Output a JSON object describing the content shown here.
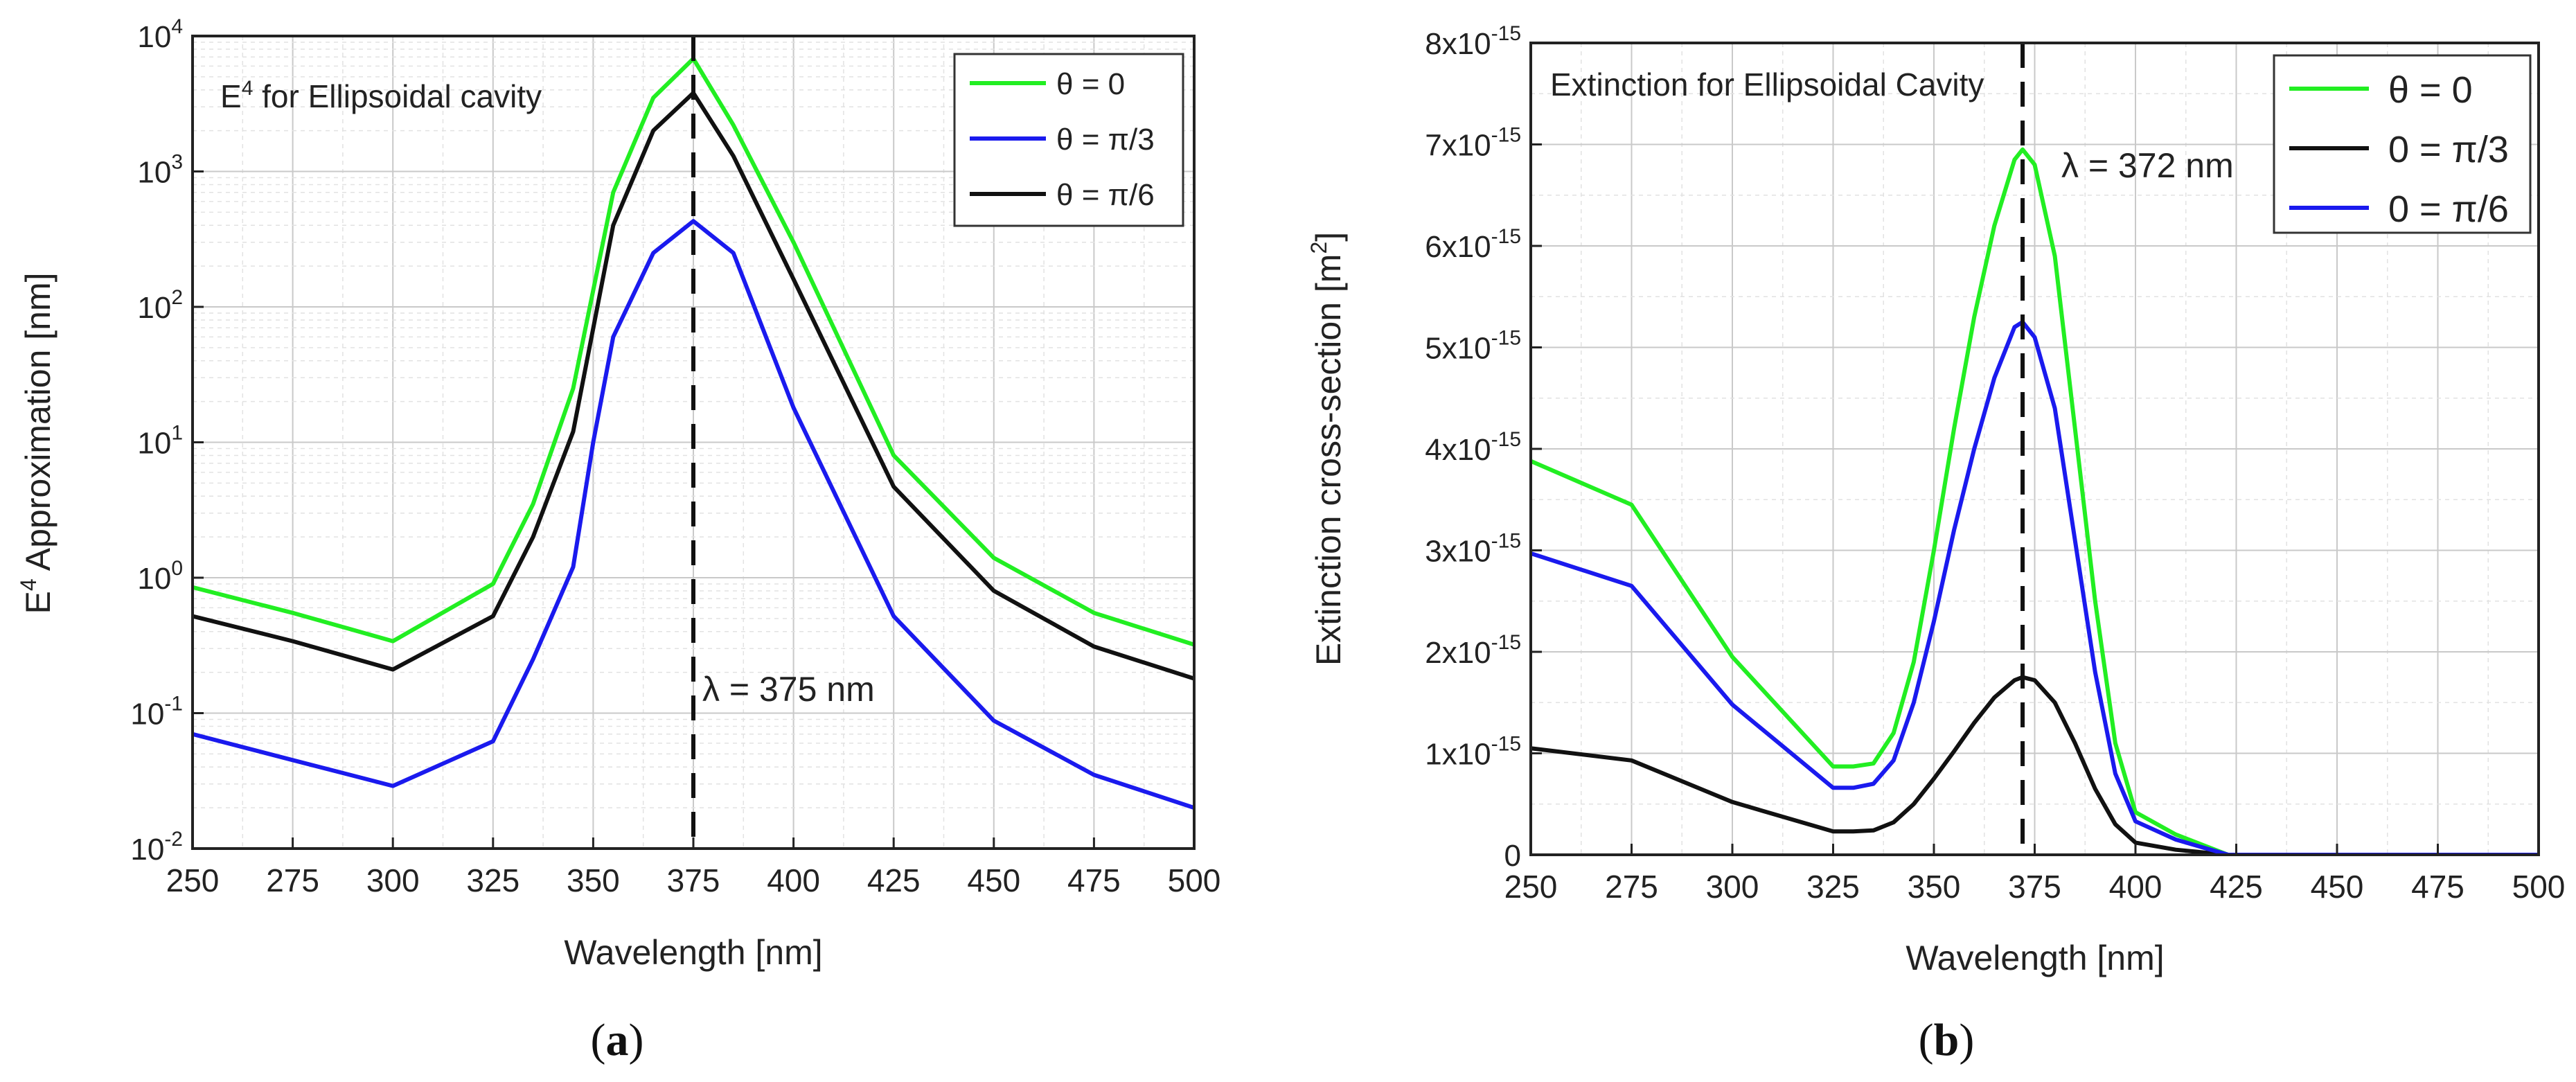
{
  "chart_data": [
    {
      "type": "line",
      "panel": "(a)",
      "panel_label": "a",
      "title": "E4 for Ellipsoidal cavity",
      "title_prefix": "E",
      "title_sup": "4",
      "title_suffix": " for Ellipsoidal cavity",
      "xlabel": "Wavelength [nm]",
      "ylabel_prefix": "E",
      "ylabel_sup": "4",
      "ylabel_suffix": " Approximation [nm]",
      "yscale": "log",
      "xlim": [
        250,
        500
      ],
      "ylim": [
        0.01,
        10000
      ],
      "x_ticks": [
        250,
        275,
        300,
        325,
        350,
        375,
        400,
        425,
        450,
        475,
        500
      ],
      "y_ticks": [
        {
          "value": 0.01,
          "base": "10",
          "exp": "-2"
        },
        {
          "value": 0.1,
          "base": "10",
          "exp": "-1"
        },
        {
          "value": 1,
          "base": "10",
          "exp": "0"
        },
        {
          "value": 10,
          "base": "10",
          "exp": "1"
        },
        {
          "value": 100,
          "base": "10",
          "exp": "2"
        },
        {
          "value": 1000,
          "base": "10",
          "exp": "3"
        },
        {
          "value": 10000,
          "base": "10",
          "exp": "4"
        }
      ],
      "grid": true,
      "legend_position": "top-right",
      "annotation": {
        "text": "λ = 375 nm",
        "x": 375
      },
      "series": [
        {
          "name": "θ = 0",
          "color": "#22ee22",
          "x": [
            250,
            275,
            300,
            325,
            335,
            345,
            355,
            365,
            375,
            385,
            400,
            425,
            450,
            475,
            500
          ],
          "y": [
            0.85,
            0.55,
            0.34,
            0.9,
            3.5,
            25,
            700,
            3500,
            6800,
            2200,
            300,
            8,
            1.4,
            0.55,
            0.32
          ]
        },
        {
          "name": "θ = π/3",
          "color": "#1a1aee",
          "x": [
            250,
            275,
            300,
            325,
            335,
            345,
            350,
            355,
            365,
            375,
            385,
            400,
            425,
            450,
            475,
            500
          ],
          "y": [
            0.07,
            0.045,
            0.029,
            0.062,
            0.25,
            1.2,
            10,
            60,
            250,
            430,
            250,
            18,
            0.52,
            0.088,
            0.035,
            0.02
          ]
        },
        {
          "name": "θ = π/6",
          "color": "#111111",
          "x": [
            250,
            275,
            300,
            325,
            335,
            345,
            355,
            365,
            375,
            385,
            400,
            425,
            450,
            475,
            500
          ],
          "y": [
            0.52,
            0.34,
            0.21,
            0.52,
            2.0,
            12,
            400,
            2000,
            3800,
            1300,
            160,
            4.7,
            0.8,
            0.31,
            0.18
          ]
        }
      ]
    },
    {
      "type": "line",
      "panel": "(b)",
      "panel_label": "b",
      "title": "Extinction for Ellipsoidal Cavity",
      "xlabel": "Wavelength [nm]",
      "ylabel_prefix": "Extinction cross-section [m",
      "ylabel_sup": "2",
      "ylabel_suffix": "]",
      "yscale": "linear",
      "xlim": [
        250,
        500
      ],
      "ylim": [
        0,
        8e-15
      ],
      "x_ticks": [
        250,
        275,
        300,
        325,
        350,
        375,
        400,
        425,
        450,
        475,
        500
      ],
      "y_ticks": [
        {
          "value": 0,
          "base": "0",
          "exp": ""
        },
        {
          "value": 1e-15,
          "base": "1x10",
          "exp": "-15"
        },
        {
          "value": 2e-15,
          "base": "2x10",
          "exp": "-15"
        },
        {
          "value": 3e-15,
          "base": "3x10",
          "exp": "-15"
        },
        {
          "value": 4e-15,
          "base": "4x10",
          "exp": "-15"
        },
        {
          "value": 5e-15,
          "base": "5x10",
          "exp": "-15"
        },
        {
          "value": 6e-15,
          "base": "6x10",
          "exp": "-15"
        },
        {
          "value": 7e-15,
          "base": "7x10",
          "exp": "-15"
        },
        {
          "value": 8e-15,
          "base": "8x10",
          "exp": "-15"
        }
      ],
      "grid": true,
      "legend_position": "top-right",
      "annotation": {
        "text": "λ = 372 nm",
        "x": 372
      },
      "series": [
        {
          "name": "θ = 0",
          "color": "#22ee22",
          "x": [
            250,
            275,
            300,
            325,
            330,
            335,
            340,
            345,
            350,
            355,
            360,
            365,
            370,
            372,
            375,
            380,
            385,
            390,
            395,
            400,
            410,
            423,
            500
          ],
          "y": [
            3.88e-15,
            3.45e-15,
            1.95e-15,
            8.7e-16,
            8.7e-16,
            9e-16,
            1.2e-15,
            1.9e-15,
            3e-15,
            4.2e-15,
            5.3e-15,
            6.2e-15,
            6.85e-15,
            6.95e-15,
            6.8e-15,
            5.9e-15,
            4.2e-15,
            2.5e-15,
            1.1e-15,
            4.2e-16,
            2e-16,
            0,
            0
          ]
        },
        {
          "name": "0 = π/3",
          "color": "#111111",
          "x": [
            250,
            275,
            300,
            325,
            330,
            335,
            340,
            345,
            350,
            355,
            360,
            365,
            370,
            372,
            375,
            380,
            385,
            390,
            395,
            400,
            410,
            423,
            500
          ],
          "y": [
            1.05e-15,
            9.3e-16,
            5.2e-16,
            2.3e-16,
            2.3e-16,
            2.4e-16,
            3.2e-16,
            5e-16,
            7.5e-16,
            1.02e-15,
            1.3e-15,
            1.55e-15,
            1.72e-15,
            1.75e-15,
            1.72e-15,
            1.5e-15,
            1.1e-15,
            6.5e-16,
            3e-16,
            1.2e-16,
            5e-17,
            0,
            0
          ]
        },
        {
          "name": "0 = π/6",
          "color": "#1a1aee",
          "x": [
            250,
            275,
            300,
            325,
            330,
            335,
            340,
            345,
            350,
            355,
            360,
            365,
            370,
            372,
            375,
            380,
            385,
            390,
            395,
            400,
            410,
            423,
            500
          ],
          "y": [
            2.97e-15,
            2.65e-15,
            1.48e-15,
            6.6e-16,
            6.6e-16,
            7e-16,
            9.3e-16,
            1.5e-15,
            2.3e-15,
            3.2e-15,
            4e-15,
            4.7e-15,
            5.2e-15,
            5.25e-15,
            5.1e-15,
            4.4e-15,
            3.1e-15,
            1.8e-15,
            8e-16,
            3.3e-16,
            1.5e-16,
            0,
            0
          ]
        }
      ]
    }
  ]
}
